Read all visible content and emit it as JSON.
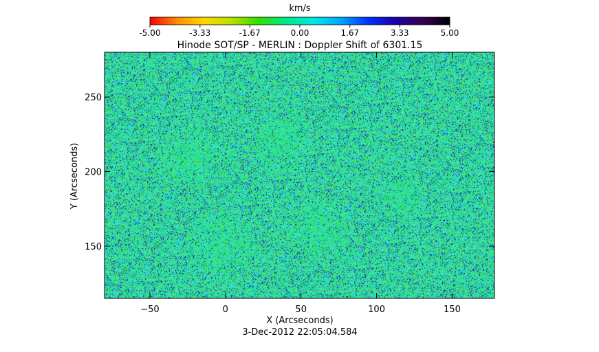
{
  "chart_data": {
    "type": "heatmap",
    "title": "Hinode SOT/SP - MERLIN : Doppler Shift of 6301.15",
    "subtitle": "3-Dec-2012 22:05:04.584",
    "xlabel": "X (Arcseconds)",
    "ylabel": "Y (Arcseconds)",
    "xlim": [
      -80,
      178
    ],
    "ylim": [
      115,
      280
    ],
    "x_ticks": [
      -50,
      0,
      50,
      100,
      150
    ],
    "y_ticks": [
      150,
      200,
      250
    ],
    "grid": false,
    "colorbar": {
      "label": "km/s",
      "range": [
        -5.0,
        5.0
      ],
      "tick_values": [
        -5.0,
        -3.33,
        -1.67,
        0.0,
        1.67,
        3.33,
        5.0
      ],
      "tick_labels": [
        "-5.00",
        "-3.33",
        "-1.67",
        "0.00",
        "1.67",
        "3.33",
        "5.00"
      ],
      "colors": [
        "#ff0000",
        "#ff8c00",
        "#ffd800",
        "#b8e000",
        "#2ee000",
        "#00e88a",
        "#00e8e0",
        "#00a8ff",
        "#0033ff",
        "#1a00a8",
        "#3a0050",
        "#000000"
      ]
    },
    "field_character": "mostly near 0 km/s (green/cyan) with scattered positive (blue) and negative (yellow-green) speckles"
  }
}
